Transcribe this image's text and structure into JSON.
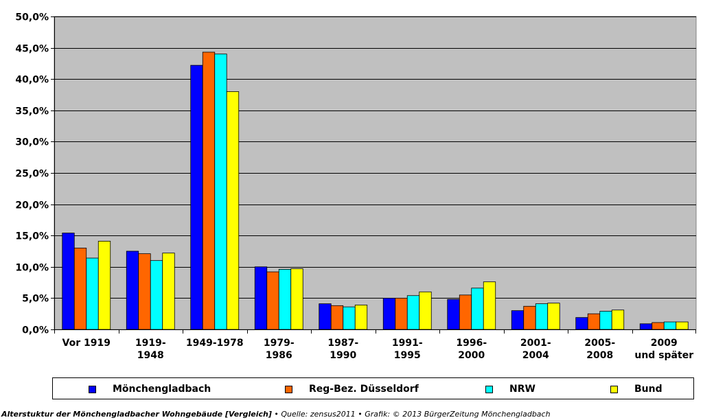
{
  "chart_data": {
    "type": "bar",
    "title": "",
    "xlabel": "",
    "ylabel": "",
    "ylim": [
      0,
      50
    ],
    "y_ticks": [
      "0,0%",
      "5,0%",
      "10,0%",
      "15,0%",
      "20,0%",
      "25,0%",
      "30,0%",
      "35,0%",
      "40,0%",
      "45,0%",
      "50,0%"
    ],
    "grid": true,
    "legend_position": "bottom",
    "plot_background": "#c0c0c0",
    "categories": [
      [
        "Vor 1919"
      ],
      [
        "1919-",
        "1948"
      ],
      [
        "1949-1978"
      ],
      [
        "1979-",
        "1986"
      ],
      [
        "1987-",
        "1990"
      ],
      [
        "1991-",
        "1995"
      ],
      [
        "1996-",
        "2000"
      ],
      [
        "2001-",
        "2004"
      ],
      [
        "2005-",
        "2008"
      ],
      [
        "2009",
        "und später"
      ]
    ],
    "series": [
      {
        "name": "Mönchengladbach",
        "color": "#0000ff",
        "values": [
          15.4,
          12.5,
          42.2,
          10.0,
          4.1,
          5.0,
          4.8,
          3.0,
          1.9,
          0.9
        ]
      },
      {
        "name": "Reg-Bez. Düsseldorf",
        "color": "#ff6600",
        "values": [
          13.0,
          12.1,
          44.3,
          9.2,
          3.8,
          5.0,
          5.5,
          3.7,
          2.5,
          1.1
        ]
      },
      {
        "name": "NRW",
        "color": "#00ffff",
        "values": [
          11.4,
          11.0,
          44.0,
          9.6,
          3.6,
          5.4,
          6.6,
          4.1,
          2.9,
          1.2
        ]
      },
      {
        "name": "Bund",
        "color": "#ffff00",
        "values": [
          14.1,
          12.2,
          38.0,
          9.7,
          3.9,
          6.0,
          7.6,
          4.2,
          3.1,
          1.2
        ]
      }
    ]
  },
  "footer": {
    "title": "Alterstuktur der Mönchengladbacher Wohngebäude [Vergleich]",
    "source": " • Quelle: zensus2011 • Grafik: © 2013 BürgerZeitung Mönchengladbach"
  }
}
